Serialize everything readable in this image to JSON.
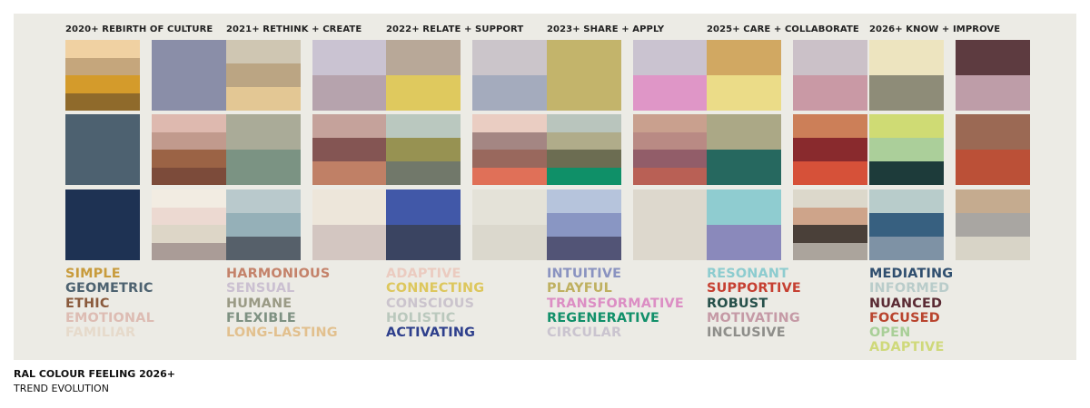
{
  "footer": {
    "title": "RAL COLOUR FEELING 2026+",
    "subtitle": "TREND EVOLUTION"
  },
  "columns": [
    {
      "title": "2020+ REBIRTH OF CULTURE",
      "blocks": [
        [
          "#f0d1a2",
          "#c5a67c",
          "#d49b2b",
          "#8f6a2b"
        ],
        [
          "#8a8ea8"
        ],
        [
          "#4d6170"
        ],
        [
          "#deb9af",
          "#c19a8d",
          "#9b6345",
          "#7c4b3a"
        ],
        [
          "#1e3253"
        ],
        [
          "#f2ece2",
          "#ecd9d1",
          "#ddd6c7",
          "#aa9c97"
        ]
      ],
      "words": [
        {
          "text": "SIMPLE",
          "color": "#c89b3c"
        },
        {
          "text": "GEOMETRIC",
          "color": "#4d6270"
        },
        {
          "text": "ETHIC",
          "color": "#8a5a3c"
        },
        {
          "text": "EMOTIONAL",
          "color": "#ddbcb3"
        },
        {
          "text": "FAMILIAR",
          "color": "#e6dacb"
        }
      ]
    },
    {
      "title": "2021+ RETHINK + CREATE",
      "blocks": [
        [
          "#cfc6b2",
          "#bba583",
          "#e3c794"
        ],
        [
          "#cac3d2",
          "#b6a3ad"
        ],
        [
          "#aaab98",
          "#7b9383"
        ],
        [
          "#c5a29b",
          "#845553",
          "#c08066"
        ],
        [
          "#b9c9cc",
          "#95b0b8",
          "#56606a"
        ],
        [
          "#ede6da",
          "#d3c6c1"
        ]
      ],
      "words": [
        {
          "text": "HARMONIOUS",
          "color": "#c4826a"
        },
        {
          "text": "SENSUAL",
          "color": "#cbc0d1"
        },
        {
          "text": "HUMANE",
          "color": "#9a9a85"
        },
        {
          "text": "FLEXIBLE",
          "color": "#7e9182"
        },
        {
          "text": "LONG-LASTING",
          "color": "#e2c08e"
        }
      ]
    },
    {
      "title": "2022+ RELATE + SUPPORT",
      "blocks": [
        [
          "#b8a898",
          "#dfc95e"
        ],
        [
          "#cbc5ca",
          "#a4abbd"
        ],
        [
          "#bac8bf",
          "#979252",
          "#71786a"
        ],
        [
          "#eacdc2",
          "#a48683",
          "#99685d",
          "#e07058"
        ],
        [
          "#4158a8",
          "#3a4461"
        ],
        [
          "#e4e2d8",
          "#dbd8cd"
        ]
      ],
      "words": [
        {
          "text": "ADAPTIVE",
          "color": "#ebcbc0"
        },
        {
          "text": "CONNECTING",
          "color": "#ddc75d"
        },
        {
          "text": "CONSCIOUS",
          "color": "#cbc4cd"
        },
        {
          "text": "HOLISTIC",
          "color": "#bac8bd"
        },
        {
          "text": "ACTIVATING",
          "color": "#2e3f8c"
        }
      ]
    },
    {
      "title": "2023+ SHARE + APPLY",
      "blocks": [
        [
          "#c3b46b"
        ],
        [
          "#cac3d0",
          "#df96c7"
        ],
        [
          "#b9c5bd",
          "#b0ac8a",
          "#6c6d52",
          "#0f9068"
        ],
        [
          "#c9a08e",
          "#b98a84",
          "#925d69",
          "#b96055"
        ],
        [
          "#b6c4dc",
          "#8996c3",
          "#525476"
        ],
        [
          "#ddd8cd"
        ]
      ],
      "words": [
        {
          "text": "INTUITIVE",
          "color": "#8a93c0"
        },
        {
          "text": "PLAYFUL",
          "color": "#bfb060"
        },
        {
          "text": "TRANSFORMATIVE",
          "color": "#dc8ec4"
        },
        {
          "text": "REGENERATIVE",
          "color": "#12906a"
        },
        {
          "text": "CIRCULAR",
          "color": "#cac4cf"
        }
      ]
    },
    {
      "title": "2025+ CARE + COLLABORATE",
      "blocks": [
        [
          "#d1a862",
          "#ebdc88"
        ],
        [
          "#cbc1c8",
          "#c999a5"
        ],
        [
          "#aba886",
          "#26685f"
        ],
        [
          "#cc7f58",
          "#892a2d",
          "#d65139"
        ],
        [
          "#8fccd0",
          "#8a89bb"
        ],
        [
          "#dcd8cb",
          "#cea48a",
          "#4a4039",
          "#aba49c"
        ]
      ],
      "words": [
        {
          "text": "RESONANT",
          "color": "#8dcccf"
        },
        {
          "text": "SUPPORTIVE",
          "color": "#c64032"
        },
        {
          "text": "ROBUST",
          "color": "#26504a"
        },
        {
          "text": "MOTIVATING",
          "color": "#c59aa6"
        },
        {
          "text": "INCLUSIVE",
          "color": "#8e8e8a"
        }
      ]
    },
    {
      "title": "2026+ KNOW + IMPROVE",
      "blocks": [
        [
          "#ede4bf",
          "#8e8c78"
        ],
        [
          "#5d3b40",
          "#be9da8"
        ],
        [
          "#cfdb74",
          "#abcf9a",
          "#1d3b3a"
        ],
        [
          "#9b6954",
          "#bb5037"
        ],
        [
          "#b8cccb",
          "#376080",
          "#7e92a5"
        ],
        [
          "#c5ab8f",
          "#a9a6a2",
          "#d8d4c7"
        ]
      ],
      "words": [
        {
          "text": "MEDIATING",
          "color": "#2f4e6e"
        },
        {
          "text": "INFORMED",
          "color": "#b9ccca"
        },
        {
          "text": "NUANCED",
          "color": "#5a2a33"
        },
        {
          "text": "FOCUSED",
          "color": "#b9442e"
        },
        {
          "text": "OPEN",
          "color": "#a9cf98"
        },
        {
          "text": "ADAPTIVE",
          "color": "#cfd97a"
        }
      ]
    }
  ]
}
